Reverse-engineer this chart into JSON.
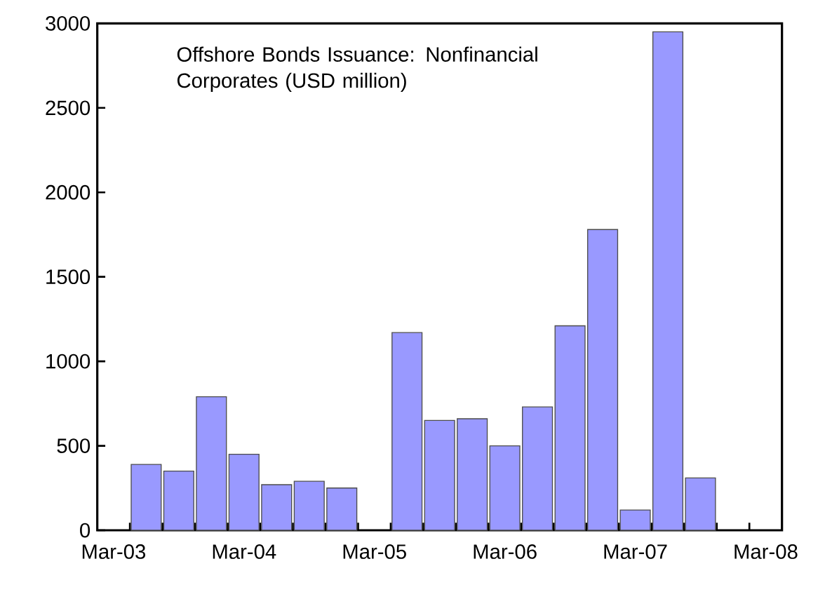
{
  "chart_data": {
    "type": "bar",
    "title": "Offshore Bonds Issuance: Nonfinancial Corporates (USD million)",
    "categories": [
      "Mar-03",
      null,
      null,
      null,
      "Mar-04",
      null,
      null,
      null,
      "Mar-05",
      null,
      null,
      null,
      "Mar-06",
      null,
      null,
      null,
      "Mar-07",
      null,
      null,
      null,
      "Mar-08"
    ],
    "values": [
      null,
      390,
      350,
      790,
      450,
      270,
      290,
      250,
      null,
      1170,
      650,
      660,
      500,
      730,
      1210,
      1780,
      120,
      2950,
      310,
      null,
      null
    ],
    "color": "#9999ff",
    "ylim": [
      0,
      3000
    ],
    "yticks": [
      0,
      500,
      1000,
      1500,
      2000,
      2500,
      3000
    ],
    "grid": false
  }
}
